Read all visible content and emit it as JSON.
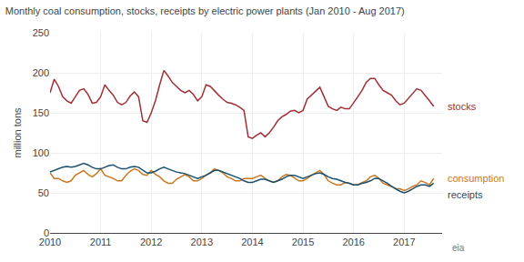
{
  "chart_data": {
    "type": "line",
    "title": "Monthly coal consumption, stocks, receipts by electric power plants (Jan 2010 - Aug 2017)",
    "ylabel": "million tons",
    "x": [
      2010,
      2010.083333,
      2010.166667,
      2010.25,
      2010.333333,
      2010.416667,
      2010.5,
      2010.583333,
      2010.666667,
      2010.75,
      2010.833333,
      2010.916667,
      2011,
      2011.083333,
      2011.166667,
      2011.25,
      2011.333333,
      2011.416667,
      2011.5,
      2011.583333,
      2011.666667,
      2011.75,
      2011.833333,
      2011.916667,
      2012,
      2012.083333,
      2012.166667,
      2012.25,
      2012.333333,
      2012.416667,
      2012.5,
      2012.583333,
      2012.666667,
      2012.75,
      2012.833333,
      2012.916667,
      2013,
      2013.083333,
      2013.166667,
      2013.25,
      2013.333333,
      2013.416667,
      2013.5,
      2013.583333,
      2013.666667,
      2013.75,
      2013.833333,
      2013.916667,
      2014,
      2014.083333,
      2014.166667,
      2014.25,
      2014.333333,
      2014.416667,
      2014.5,
      2014.583333,
      2014.666667,
      2014.75,
      2014.833333,
      2014.916667,
      2015,
      2015.083333,
      2015.166667,
      2015.25,
      2015.333333,
      2015.416667,
      2015.5,
      2015.583333,
      2015.666667,
      2015.75,
      2015.833333,
      2015.916667,
      2016,
      2016.083333,
      2016.166667,
      2016.25,
      2016.333333,
      2016.416667,
      2016.5,
      2016.583333,
      2016.666667,
      2016.75,
      2016.833333,
      2016.916667,
      2017,
      2017.083333,
      2017.166667,
      2017.25,
      2017.333333,
      2017.416667,
      2017.5,
      2017.583333
    ],
    "series": [
      {
        "name": "stocks",
        "color": "#a03035",
        "values": [
          175,
          192,
          183,
          170,
          165,
          162,
          170,
          178,
          180,
          173,
          162,
          163,
          170,
          185,
          178,
          172,
          163,
          160,
          163,
          171,
          176,
          170,
          140,
          138,
          150,
          165,
          185,
          203,
          196,
          188,
          183,
          178,
          175,
          178,
          173,
          165,
          170,
          185,
          183,
          177,
          172,
          167,
          163,
          162,
          160,
          157,
          153,
          120,
          118,
          122,
          125,
          120,
          125,
          132,
          140,
          145,
          148,
          152,
          153,
          150,
          153,
          167,
          172,
          178,
          182,
          170,
          158,
          155,
          153,
          157,
          155,
          155,
          162,
          170,
          178,
          188,
          193,
          193,
          185,
          178,
          175,
          172,
          165,
          160,
          162,
          168,
          175,
          180,
          178,
          172,
          165,
          158
        ]
      },
      {
        "name": "consumption",
        "color": "#c87820",
        "values": [
          75,
          68,
          68,
          65,
          63,
          65,
          72,
          75,
          78,
          73,
          70,
          74,
          80,
          72,
          70,
          68,
          65,
          65,
          72,
          77,
          80,
          78,
          73,
          72,
          78,
          73,
          70,
          65,
          62,
          62,
          67,
          70,
          73,
          70,
          65,
          65,
          68,
          72,
          75,
          80,
          78,
          75,
          70,
          68,
          65,
          65,
          68,
          68,
          68,
          70,
          72,
          68,
          65,
          63,
          65,
          70,
          73,
          72,
          68,
          65,
          65,
          68,
          72,
          75,
          78,
          73,
          65,
          62,
          60,
          60,
          63,
          62,
          60,
          60,
          63,
          65,
          70,
          72,
          68,
          62,
          60,
          58,
          55,
          55,
          53,
          55,
          58,
          60,
          65,
          63,
          60,
          68
        ]
      },
      {
        "name": "receipts",
        "color": "#1a4f6e",
        "values": [
          76,
          78,
          80,
          82,
          83,
          82,
          83,
          85,
          87,
          85,
          82,
          80,
          80,
          82,
          84,
          85,
          82,
          80,
          80,
          82,
          83,
          82,
          78,
          75,
          75,
          77,
          80,
          82,
          80,
          78,
          76,
          75,
          74,
          72,
          70,
          68,
          70,
          72,
          75,
          78,
          78,
          76,
          74,
          72,
          70,
          68,
          65,
          63,
          63,
          65,
          67,
          67,
          65,
          63,
          65,
          67,
          70,
          72,
          72,
          70,
          68,
          70,
          72,
          74,
          75,
          73,
          70,
          68,
          67,
          65,
          63,
          62,
          60,
          60,
          62,
          63,
          65,
          68,
          68,
          65,
          62,
          58,
          55,
          52,
          50,
          52,
          55,
          58,
          60,
          60,
          58,
          62
        ]
      }
    ],
    "xlim": [
      2010,
      2017.75
    ],
    "xticks": [
      2010,
      2011,
      2012,
      2013,
      2014,
      2015,
      2016,
      2017
    ],
    "ylim": [
      0,
      250
    ],
    "yticks": [
      0,
      50,
      100,
      150,
      200,
      250
    ],
    "grid": true,
    "annotations": [
      {
        "text": "eia"
      }
    ]
  }
}
